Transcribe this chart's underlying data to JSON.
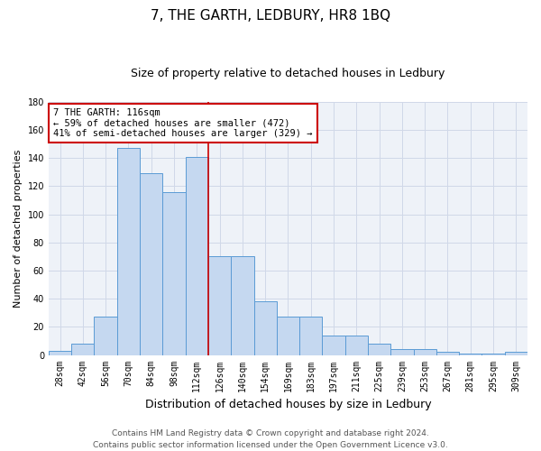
{
  "title": "7, THE GARTH, LEDBURY, HR8 1BQ",
  "subtitle": "Size of property relative to detached houses in Ledbury",
  "xlabel": "Distribution of detached houses by size in Ledbury",
  "ylabel": "Number of detached properties",
  "categories": [
    "28sqm",
    "42sqm",
    "56sqm",
    "70sqm",
    "84sqm",
    "98sqm",
    "112sqm",
    "126sqm",
    "140sqm",
    "154sqm",
    "169sqm",
    "183sqm",
    "197sqm",
    "211sqm",
    "225sqm",
    "239sqm",
    "253sqm",
    "267sqm",
    "281sqm",
    "295sqm",
    "309sqm"
  ],
  "values": [
    3,
    8,
    27,
    147,
    129,
    116,
    141,
    70,
    70,
    38,
    27,
    27,
    14,
    14,
    8,
    4,
    4,
    2,
    1,
    1,
    2
  ],
  "bar_color": "#c5d8f0",
  "bar_edge_color": "#5b9bd5",
  "vline_x": 6,
  "annotation_line1": "7 THE GARTH: 116sqm",
  "annotation_line2": "← 59% of detached houses are smaller (472)",
  "annotation_line3": "41% of semi-detached houses are larger (329) →",
  "annotation_box_color": "#ffffff",
  "annotation_box_edge_color": "#cc0000",
  "ylim": [
    0,
    180
  ],
  "yticks": [
    0,
    20,
    40,
    60,
    80,
    100,
    120,
    140,
    160,
    180
  ],
  "grid_color": "#d0d8e8",
  "background_color": "#eef2f8",
  "vline_color": "#cc0000",
  "footer_line1": "Contains HM Land Registry data © Crown copyright and database right 2024.",
  "footer_line2": "Contains public sector information licensed under the Open Government Licence v3.0.",
  "title_fontsize": 11,
  "subtitle_fontsize": 9,
  "xlabel_fontsize": 9,
  "ylabel_fontsize": 8,
  "tick_fontsize": 7,
  "footer_fontsize": 6.5,
  "annotation_fontsize": 7.5
}
